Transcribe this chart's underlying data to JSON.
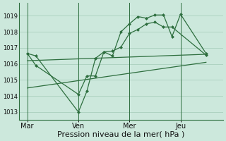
{
  "bg_color": "#cce8dc",
  "grid_color": "#aacfbe",
  "line_color": "#2d6e3e",
  "xlabel": "Pression niveau de la mer( hPa )",
  "xlabel_fontsize": 8,
  "ylim": [
    1012.5,
    1019.8
  ],
  "yticks": [
    1013,
    1014,
    1015,
    1016,
    1017,
    1018,
    1019
  ],
  "ytick_fontsize": 6,
  "xtick_labels": [
    "Mar",
    "Ven",
    "Mer",
    "Jeu"
  ],
  "xtick_positions": [
    0,
    30,
    60,
    90
  ],
  "xlim": [
    -5,
    115
  ],
  "vlines": [
    0,
    30,
    60,
    90
  ],
  "series1_x": [
    0,
    5,
    30,
    35,
    40,
    45,
    50,
    55,
    60,
    65,
    70,
    75,
    80,
    85,
    105
  ],
  "series1_y": [
    1016.65,
    1015.9,
    1014.1,
    1015.25,
    1015.25,
    1016.75,
    1016.8,
    1017.05,
    1017.9,
    1018.15,
    1018.5,
    1018.6,
    1018.3,
    1018.3,
    1016.55
  ],
  "series2_x": [
    0,
    5,
    30,
    35,
    40,
    45,
    50,
    55,
    60,
    65,
    70,
    75,
    80,
    85,
    90,
    105
  ],
  "series2_y": [
    1016.65,
    1016.5,
    1013.0,
    1014.3,
    1016.35,
    1016.75,
    1016.5,
    1018.0,
    1018.5,
    1018.95,
    1018.85,
    1019.05,
    1019.05,
    1017.7,
    1019.1,
    1016.65
  ],
  "series3_x": [
    0,
    105
  ],
  "series3_y": [
    1016.2,
    1016.6
  ],
  "series4_x": [
    0,
    105
  ],
  "series4_y": [
    1014.5,
    1016.1
  ]
}
